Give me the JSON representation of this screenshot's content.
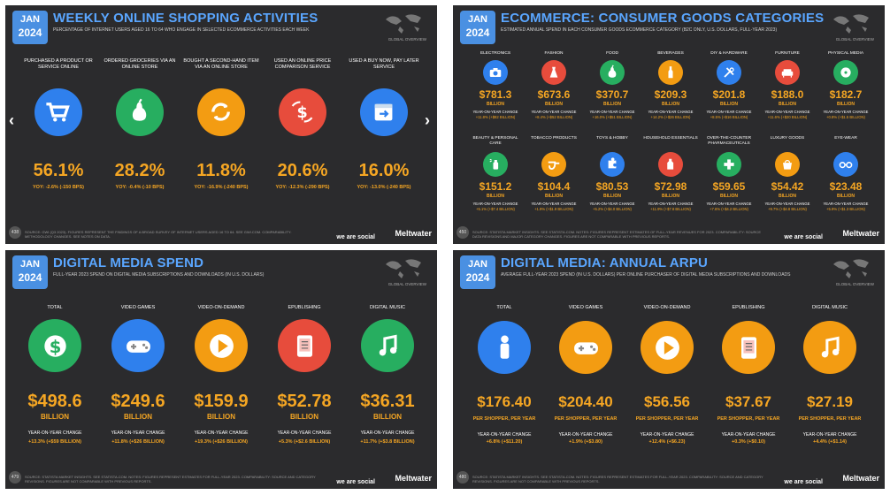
{
  "slide1": {
    "date_month": "JAN",
    "date_year": "2024",
    "title": "WEEKLY ONLINE SHOPPING ACTIVITIES",
    "subtitle": "PERCENTAGE OF INTERNET USERS AGED 16 TO 64 WHO ENGAGE IN SELECTED ECOMMERCE ACTIVITIES EACH WEEK",
    "globe_label": "GLOBAL OVERVIEW",
    "page_number": "438",
    "footer_source": "SOURCE: GWI (Q3 2023). FIGURES REPRESENT THE FINDINGS OF A BROAD SURVEY OF INTERNET USERS AGED 16 TO 64. SEE GWI.COM. COMPARABILITY: METHODOLOGY CHANGES. SEE NOTES ON DATA.",
    "brand_we": "we are social",
    "brand_mw": "Meltwater",
    "arrow_left": "‹",
    "arrow_right": "›",
    "items": [
      {
        "label": "PURCHASED A PRODUCT OR SERVICE ONLINE",
        "value": "56.1%",
        "yoy": "YOY: -2.6% (-150 BPS)",
        "color": "#2f80ed",
        "icon": "cart-icon"
      },
      {
        "label": "ORDERED GROCERIES VIA AN ONLINE STORE",
        "value": "28.2%",
        "yoy": "YOY: -0.4% (-10 BPS)",
        "color": "#27ae60",
        "icon": "pear-icon"
      },
      {
        "label": "BOUGHT A SECOND-HAND ITEM VIA AN ONLINE STORE",
        "value": "11.8%",
        "yoy": "YOY: -16.9% (-240 BPS)",
        "color": "#f39c12",
        "icon": "recycle-icon"
      },
      {
        "label": "USED AN ONLINE PRICE COMPARISON SERVICE",
        "value": "20.6%",
        "yoy": "YOY: -12.3% (-290 BPS)",
        "color": "#e74c3c",
        "icon": "price-compare-icon"
      },
      {
        "label": "USED A BUY NOW, PAY LATER SERVICE",
        "value": "16.0%",
        "yoy": "YOY: -13.0% (-240 BPS)",
        "color": "#2f80ed",
        "icon": "calendar-pay-icon"
      }
    ]
  },
  "slide2": {
    "date_month": "JAN",
    "date_year": "2024",
    "title": "ECOMMERCE: CONSUMER GOODS CATEGORIES",
    "subtitle": "ESTIMATED ANNUAL SPEND IN EACH CONSUMER GOODS ECOMMERCE CATEGORY (B2C ONLY, U.S. DOLLARS, FULL-YEAR 2023)",
    "globe_label": "GLOBAL OVERVIEW",
    "page_number": "450",
    "footer_source": "SOURCE: STATISTA MARKET INSIGHTS. SEE STATISTA.COM. NOTES: FIGURES REPRESENT ESTIMATES OF FULL-YEAR REVENUES FOR 2023. COMPARABILITY: SOURCE DATA REVISIONS AND MAJOR CATEGORY CHANGES. FIGURES ARE NOT COMPARABLE WITH PREVIOUS REPORTS.",
    "brand_we": "we are social",
    "brand_mw": "Meltwater",
    "unit": "BILLION",
    "yoy_caption": "YEAR-ON-YEAR CHANGE",
    "items": [
      {
        "label": "ELECTRONICS",
        "value": "$781.3",
        "yoy": "+11.8% (+$82 BILLION)",
        "color": "#2f80ed",
        "icon": "camera-icon"
      },
      {
        "label": "FASHION",
        "value": "$673.6",
        "yoy": "+8.4% (+$52 BILLION)",
        "color": "#e74c3c",
        "icon": "dress-icon"
      },
      {
        "label": "FOOD",
        "value": "$370.7",
        "yoy": "+16.0% (+$51 BILLION)",
        "color": "#27ae60",
        "icon": "pear-icon"
      },
      {
        "label": "BEVERAGES",
        "value": "$209.3",
        "yoy": "+14.2% (+$26 BILLION)",
        "color": "#f39c12",
        "icon": "bottle-icon"
      },
      {
        "label": "DIY & HARDWARE",
        "value": "$201.8",
        "yoy": "+8.5% (+$16 BILLION)",
        "color": "#2f80ed",
        "icon": "tools-icon"
      },
      {
        "label": "FURNITURE",
        "value": "$188.0",
        "yoy": "+11.6% (+$20 BILLION)",
        "color": "#e74c3c",
        "icon": "sofa-icon"
      },
      {
        "label": "PHYSICAL MEDIA",
        "value": "$182.7",
        "yoy": "+0.8% (+$1.5 BILLION)",
        "color": "#27ae60",
        "icon": "disc-icon"
      },
      {
        "label": "BEAUTY & PERSONAL CARE",
        "value": "$151.2",
        "yoy": "+5.1% (+$7.4 BILLION)",
        "color": "#27ae60",
        "icon": "spray-icon"
      },
      {
        "label": "TOBACCO PRODUCTS",
        "value": "$104.4",
        "yoy": "+1.9% (+$1.9 BILLION)",
        "color": "#f39c12",
        "icon": "pipe-icon"
      },
      {
        "label": "TOYS & HOBBY",
        "value": "$80.53",
        "yoy": "+5.2% (+$4.0 BILLION)",
        "color": "#2f80ed",
        "icon": "puzzle-icon"
      },
      {
        "label": "HOUSEHOLD ESSENTIALS",
        "value": "$72.98",
        "yoy": "+11.9% (+$7.8 BILLION)",
        "color": "#e74c3c",
        "icon": "detergent-icon"
      },
      {
        "label": "OVER-THE-COUNTER PHARMACEUTICALS",
        "value": "$59.65",
        "yoy": "+7.6% (+$4.2 BILLION)",
        "color": "#27ae60",
        "icon": "medical-cross-icon"
      },
      {
        "label": "LUXURY GOODS",
        "value": "$54.42",
        "yoy": "+9.7% (+$4.8 BILLION)",
        "color": "#f39c12",
        "icon": "handbag-icon"
      },
      {
        "label": "EYE-WEAR",
        "value": "$23.48",
        "yoy": "+5.9% (+$1.3 BILLION)",
        "color": "#2f80ed",
        "icon": "glasses-icon"
      }
    ]
  },
  "slide3": {
    "date_month": "JAN",
    "date_year": "2024",
    "title": "DIGITAL MEDIA SPEND",
    "subtitle": "FULL-YEAR 2023 SPEND ON DIGITAL MEDIA SUBSCRIPTIONS AND DOWNLOADS (IN U.S. DOLLARS)",
    "globe_label": "GLOBAL OVERVIEW",
    "page_number": "479",
    "footer_source": "SOURCE: STATISTA MARKET INSIGHTS. SEE STATISTA.COM. NOTES: FIGURES REPRESENT ESTIMATES FOR FULL-YEAR 2023. COMPARABILITY: SOURCE AND CATEGORY REVISIONS. FIGURES ARE NOT COMPARABLE WITH PREVIOUS REPORTS.",
    "brand_we": "we are social",
    "brand_mw": "Meltwater",
    "unit": "BILLION",
    "yoy_caption": "YEAR-ON-YEAR CHANGE",
    "items": [
      {
        "label": "TOTAL",
        "value": "$498.6",
        "yoy": "+13.3% (+$59 BILLION)",
        "color": "#27ae60",
        "icon": "dollar-badge-icon"
      },
      {
        "label": "VIDEO GAMES",
        "value": "$249.6",
        "yoy": "+11.8% (+$26 BILLION)",
        "color": "#2f80ed",
        "icon": "gamepad-icon"
      },
      {
        "label": "VIDEO-ON-DEMAND",
        "value": "$159.9",
        "yoy": "+19.3% (+$26 BILLION)",
        "color": "#f39c12",
        "icon": "play-icon"
      },
      {
        "label": "EPUBLISHING",
        "value": "$52.78",
        "yoy": "+5.3% (+$2.6 BILLION)",
        "color": "#e74c3c",
        "icon": "ereader-icon"
      },
      {
        "label": "DIGITAL MUSIC",
        "value": "$36.31",
        "yoy": "+11.7% (+$3.8 BILLION)",
        "color": "#27ae60",
        "icon": "music-note-icon"
      }
    ]
  },
  "slide4": {
    "date_month": "JAN",
    "date_year": "2024",
    "title": "DIGITAL MEDIA: ANNUAL ARPU",
    "subtitle": "AVERAGE FULL-YEAR 2023 SPEND (IN U.S. DOLLARS) PER ONLINE PURCHASER OF DIGITAL MEDIA SUBSCRIPTIONS AND DOWNLOADS",
    "globe_label": "GLOBAL OVERVIEW",
    "page_number": "480",
    "footer_source": "SOURCE: STATISTA MARKET INSIGHTS. SEE STATISTA.COM. NOTES: FIGURES REPRESENT ESTIMATES FOR FULL-YEAR 2023. COMPARABILITY: SOURCE AND CATEGORY REVISIONS. FIGURES ARE NOT COMPARABLE WITH PREVIOUS REPORTS.",
    "brand_we": "we are social",
    "brand_mw": "Meltwater",
    "unit": "PER SHOPPER, PER YEAR",
    "yoy_caption": "YEAR-ON-YEAR CHANGE",
    "items": [
      {
        "label": "TOTAL",
        "value": "$176.40",
        "yoy": "+6.8% (+$11.20)",
        "color": "#2f80ed",
        "icon": "person-icon"
      },
      {
        "label": "VIDEO GAMES",
        "value": "$204.40",
        "yoy": "+1.9% (+$3.80)",
        "color": "#f39c12",
        "icon": "gamepad-icon"
      },
      {
        "label": "VIDEO-ON-DEMAND",
        "value": "$56.56",
        "yoy": "+12.4% (+$6.23)",
        "color": "#f39c12",
        "icon": "play-icon"
      },
      {
        "label": "EPUBLISHING",
        "value": "$37.67",
        "yoy": "+0.3% (+$0.10)",
        "color": "#f39c12",
        "icon": "ereader-icon"
      },
      {
        "label": "DIGITAL MUSIC",
        "value": "$27.19",
        "yoy": "+4.4% (+$1.14)",
        "color": "#f39c12",
        "icon": "music-note-icon"
      }
    ]
  }
}
